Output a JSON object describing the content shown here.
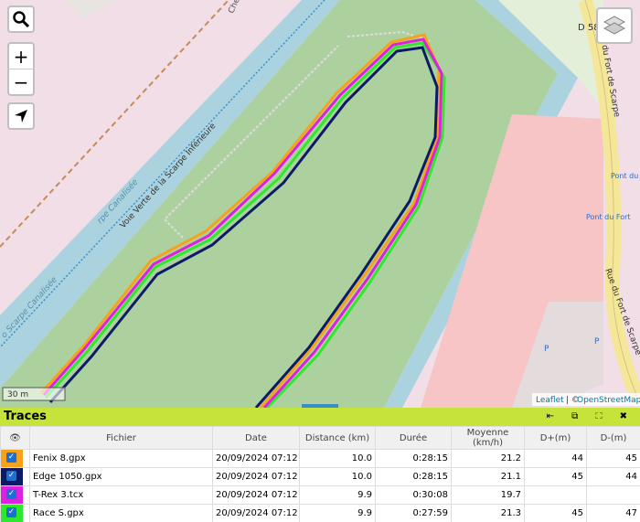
{
  "map": {
    "labels": {
      "chemin": "Chem",
      "road_ref": "D 58",
      "street_top": "Rue du Fort de Scarpe",
      "street_bottom": "Rue du Fort de Scarpe",
      "greenway": "Voie Verte de la Scarpe Inférieure",
      "canal_top": "rpe Canalisée",
      "canal_bottom": "o Scarpe Canalisée",
      "stop_top": "Pont du Fort",
      "stop_bottom": "Pont du Fort",
      "parking_1": "P",
      "parking_2": "P"
    },
    "scale": "30 m",
    "attribution": {
      "leaflet": "Leaflet",
      "separator": "| ©",
      "osm": "OpenStreetMap"
    },
    "controls": {
      "zoom_in": "+",
      "zoom_out": "−"
    }
  },
  "panel": {
    "title": "Traces",
    "columns": [
      "Fichier",
      "Date",
      "Distance (km)",
      "Durée",
      "Moyenne (km/h)",
      "D+(m)",
      "D-(m)"
    ],
    "rows": [
      {
        "color": "#f7a21b",
        "cells": [
          "Fenix 8.gpx",
          "20/09/2024 07:12",
          "10.0",
          "0:28:15",
          "21.2",
          "44",
          "45"
        ]
      },
      {
        "color": "#0d1a66",
        "cells": [
          "Edge 1050.gpx",
          "20/09/2024 07:12",
          "10.0",
          "0:28:15",
          "21.1",
          "45",
          "44"
        ]
      },
      {
        "color": "#e020e0",
        "cells": [
          "T-Rex 3.tcx",
          "20/09/2024 07:12",
          "9.9",
          "0:30:08",
          "19.7",
          null,
          null
        ]
      },
      {
        "color": "#2ee82e",
        "cells": [
          "Race S.gpx",
          "20/09/2024 07:12",
          "9.9",
          "0:27:59",
          "21.3",
          "45",
          "47"
        ]
      }
    ]
  }
}
